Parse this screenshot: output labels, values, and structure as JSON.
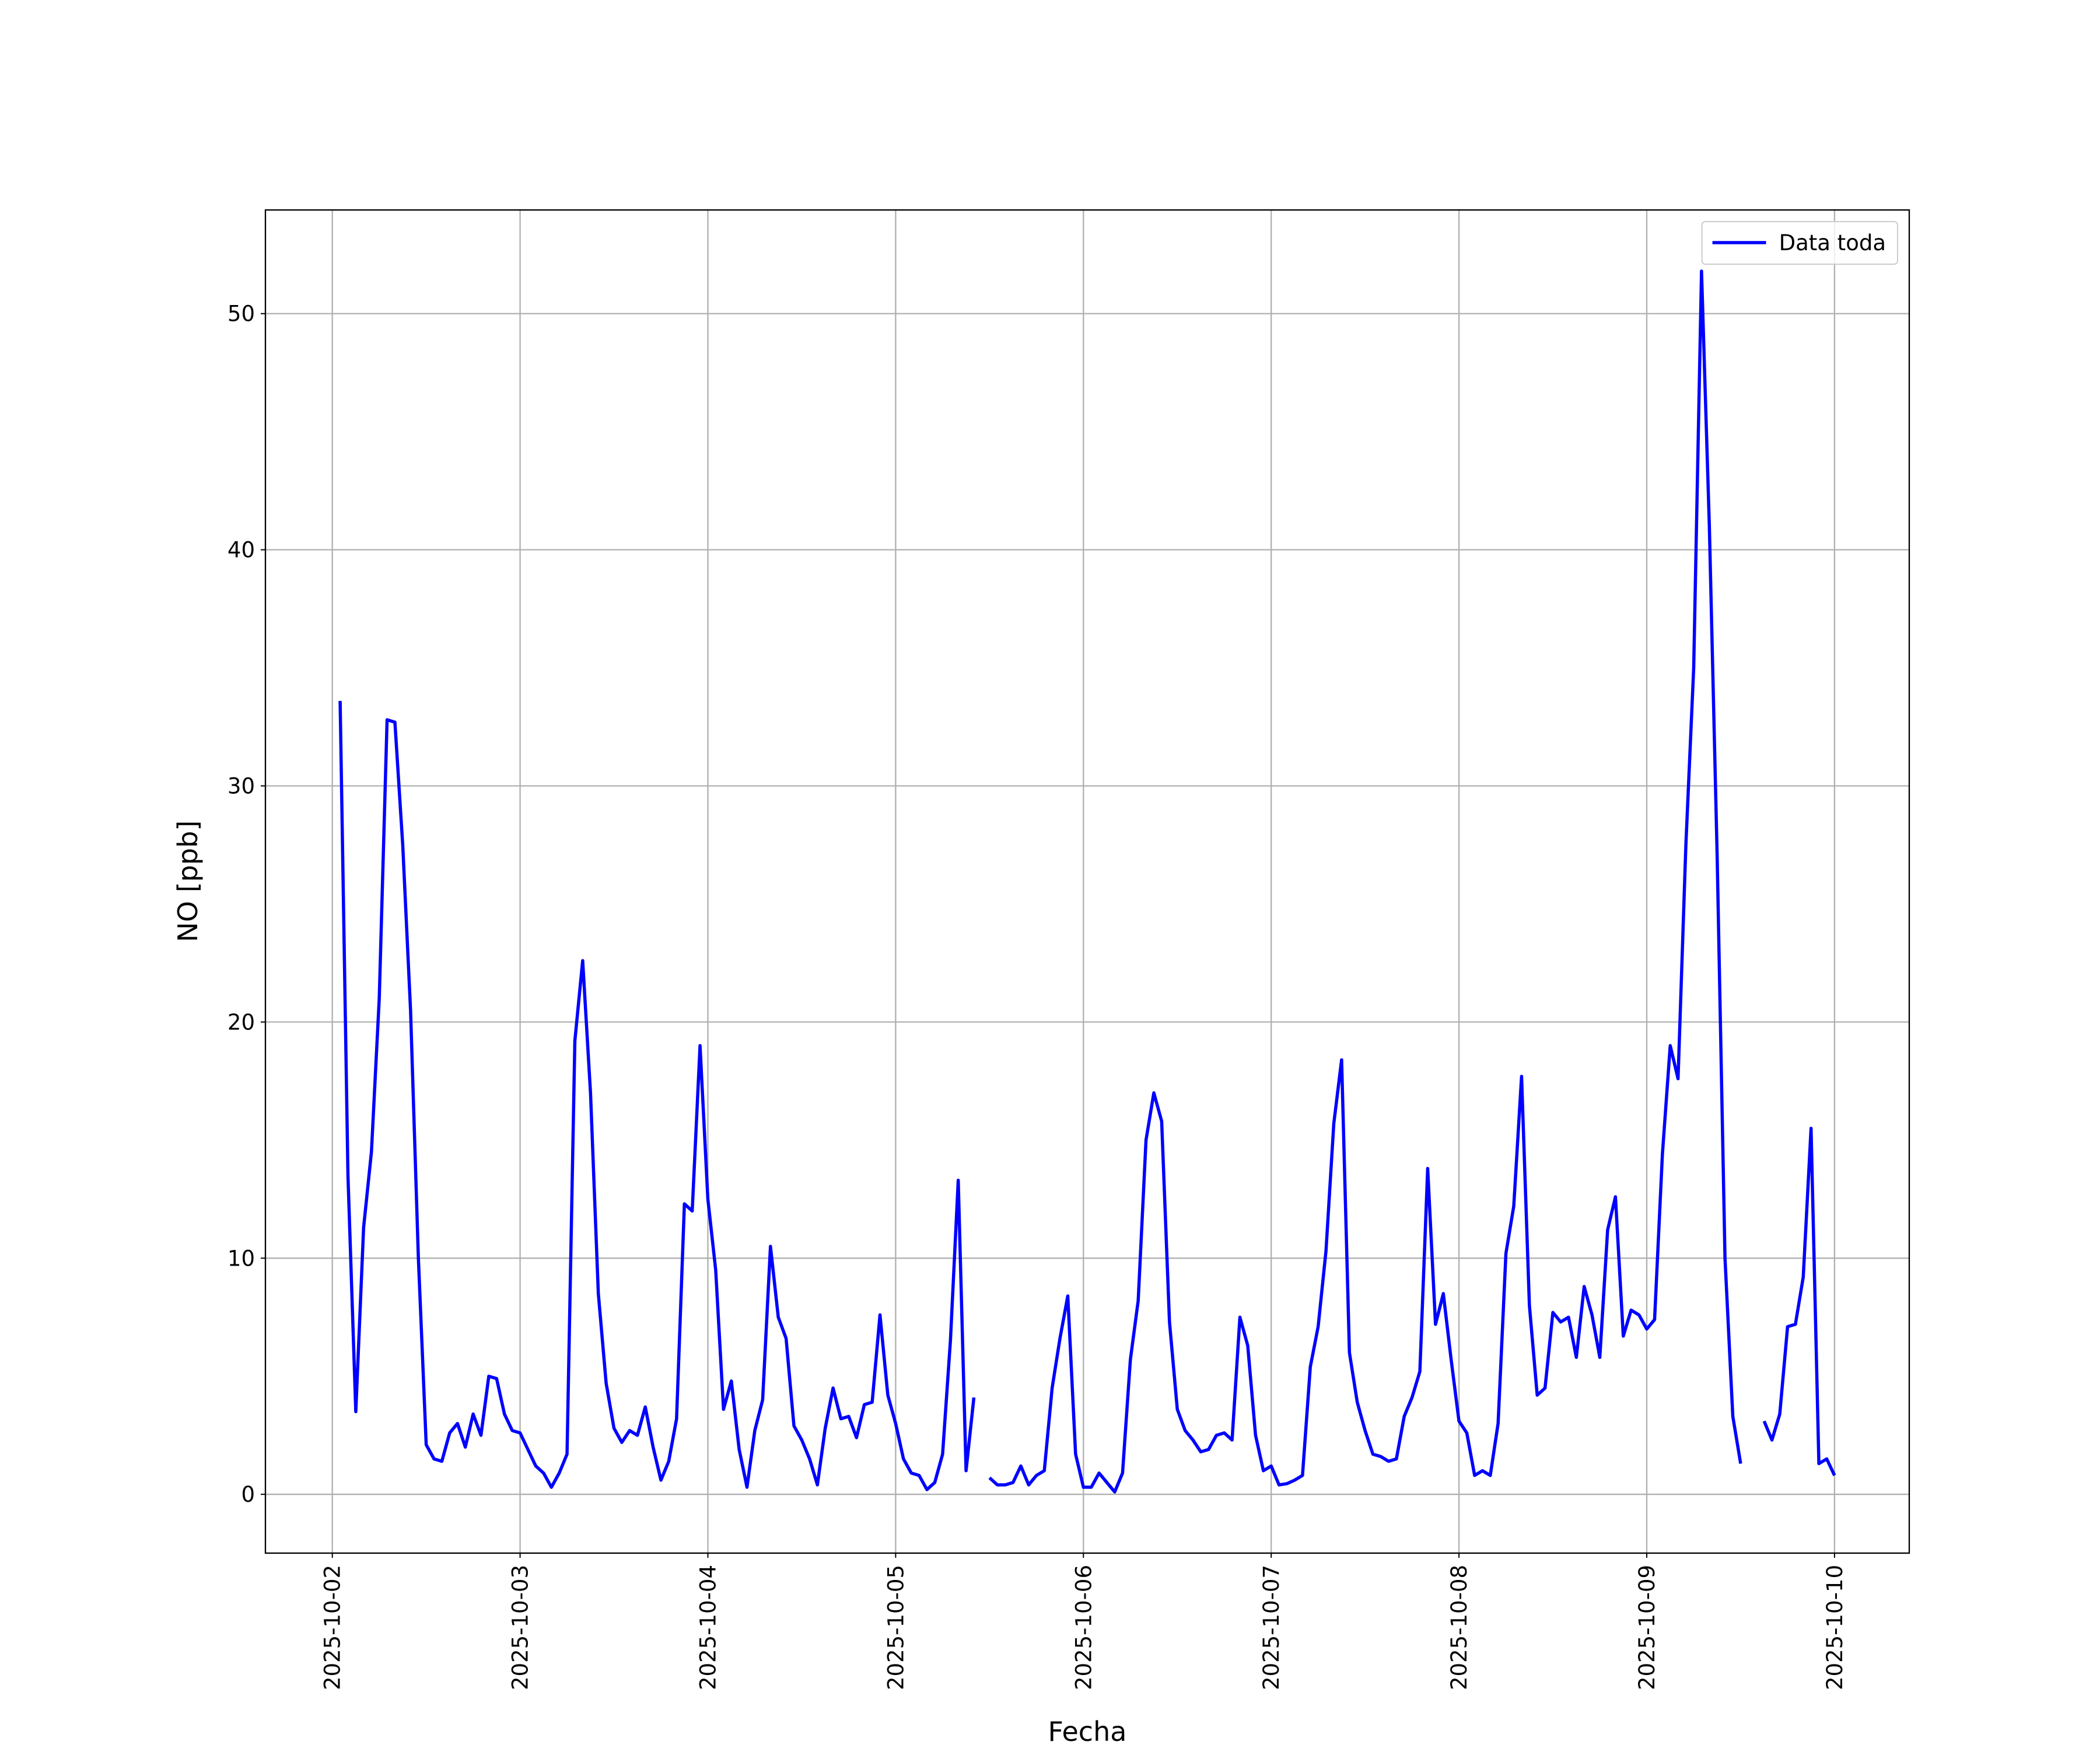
{
  "chart_data": {
    "type": "line",
    "x_label": "Fecha",
    "y_label": "NO [ppb]",
    "xlim": [
      "2025-10-01 15:27",
      "2025-10-10 09:33"
    ],
    "xticks": [
      "2025-10-02",
      "2025-10-03",
      "2025-10-04",
      "2025-10-05",
      "2025-10-06",
      "2025-10-07",
      "2025-10-08",
      "2025-10-09",
      "2025-10-10"
    ],
    "ylim": [
      -2.49,
      54.39
    ],
    "yticks": [
      0,
      10,
      20,
      30,
      40,
      50
    ],
    "grid": true,
    "legend": "upper right",
    "x": [
      "2025-10-02 01:00",
      "2025-10-02 02:00",
      "2025-10-02 03:00",
      "2025-10-02 04:00",
      "2025-10-02 05:00",
      "2025-10-02 06:00",
      "2025-10-02 07:00",
      "2025-10-02 08:00",
      "2025-10-02 09:00",
      "2025-10-02 10:00",
      "2025-10-02 11:00",
      "2025-10-02 12:00",
      "2025-10-02 13:00",
      "2025-10-02 14:00",
      "2025-10-02 15:00",
      "2025-10-02 16:00",
      "2025-10-02 17:00",
      "2025-10-02 18:00",
      "2025-10-02 19:00",
      "2025-10-02 20:00",
      "2025-10-02 21:00",
      "2025-10-02 22:00",
      "2025-10-02 23:00",
      "2025-10-03 00:00",
      "2025-10-03 01:00",
      "2025-10-03 02:00",
      "2025-10-03 03:00",
      "2025-10-03 04:00",
      "2025-10-03 05:00",
      "2025-10-03 06:00",
      "2025-10-03 07:00",
      "2025-10-03 08:00",
      "2025-10-03 09:00",
      "2025-10-03 10:00",
      "2025-10-03 11:00",
      "2025-10-03 12:00",
      "2025-10-03 13:00",
      "2025-10-03 14:00",
      "2025-10-03 15:00",
      "2025-10-03 16:00",
      "2025-10-03 17:00",
      "2025-10-03 18:00",
      "2025-10-03 19:00",
      "2025-10-03 20:00",
      "2025-10-03 21:00",
      "2025-10-03 22:00",
      "2025-10-03 23:00",
      "2025-10-04 00:00",
      "2025-10-04 01:00",
      "2025-10-04 02:00",
      "2025-10-04 03:00",
      "2025-10-04 04:00",
      "2025-10-04 05:00",
      "2025-10-04 06:00",
      "2025-10-04 07:00",
      "2025-10-04 08:00",
      "2025-10-04 09:00",
      "2025-10-04 10:00",
      "2025-10-04 11:00",
      "2025-10-04 12:00",
      "2025-10-04 13:00",
      "2025-10-04 14:00",
      "2025-10-04 15:00",
      "2025-10-04 16:00",
      "2025-10-04 17:00",
      "2025-10-04 18:00",
      "2025-10-04 19:00",
      "2025-10-04 20:00",
      "2025-10-04 21:00",
      "2025-10-04 22:00",
      "2025-10-04 23:00",
      "2025-10-05 00:00",
      "2025-10-05 01:00",
      "2025-10-05 02:00",
      "2025-10-05 03:00",
      "2025-10-05 04:00",
      "2025-10-05 05:00",
      "2025-10-05 06:00",
      "2025-10-05 07:00",
      "2025-10-05 08:00",
      "2025-10-05 09:00",
      "2025-10-05 10:00",
      "2025-10-05 11:00",
      "2025-10-05 12:00",
      "2025-10-05 13:00",
      "2025-10-05 14:00",
      "2025-10-05 15:00",
      "2025-10-05 16:00",
      "2025-10-05 17:00",
      "2025-10-05 18:00",
      "2025-10-05 19:00",
      "2025-10-05 20:00",
      "2025-10-05 21:00",
      "2025-10-05 22:00",
      "2025-10-05 23:00",
      "2025-10-06 00:00",
      "2025-10-06 01:00",
      "2025-10-06 02:00",
      "2025-10-06 03:00",
      "2025-10-06 04:00",
      "2025-10-06 05:00",
      "2025-10-06 06:00",
      "2025-10-06 07:00",
      "2025-10-06 08:00",
      "2025-10-06 09:00",
      "2025-10-06 10:00",
      "2025-10-06 11:00",
      "2025-10-06 12:00",
      "2025-10-06 13:00",
      "2025-10-06 14:00",
      "2025-10-06 15:00",
      "2025-10-06 16:00",
      "2025-10-06 17:00",
      "2025-10-06 18:00",
      "2025-10-06 19:00",
      "2025-10-06 20:00",
      "2025-10-06 21:00",
      "2025-10-06 22:00",
      "2025-10-06 23:00",
      "2025-10-07 00:00",
      "2025-10-07 01:00",
      "2025-10-07 02:00",
      "2025-10-07 03:00",
      "2025-10-07 04:00",
      "2025-10-07 05:00",
      "2025-10-07 06:00",
      "2025-10-07 07:00",
      "2025-10-07 08:00",
      "2025-10-07 09:00",
      "2025-10-07 10:00",
      "2025-10-07 11:00",
      "2025-10-07 12:00",
      "2025-10-07 13:00",
      "2025-10-07 14:00",
      "2025-10-07 15:00",
      "2025-10-07 16:00",
      "2025-10-07 17:00",
      "2025-10-07 18:00",
      "2025-10-07 19:00",
      "2025-10-07 20:00",
      "2025-10-07 21:00",
      "2025-10-07 22:00",
      "2025-10-07 23:00",
      "2025-10-08 00:00",
      "2025-10-08 01:00",
      "2025-10-08 02:00",
      "2025-10-08 03:00",
      "2025-10-08 04:00",
      "2025-10-08 05:00",
      "2025-10-08 06:00",
      "2025-10-08 07:00",
      "2025-10-08 08:00",
      "2025-10-08 09:00",
      "2025-10-08 10:00",
      "2025-10-08 11:00",
      "2025-10-08 12:00",
      "2025-10-08 13:00",
      "2025-10-08 14:00",
      "2025-10-08 15:00",
      "2025-10-08 16:00",
      "2025-10-08 17:00",
      "2025-10-08 18:00",
      "2025-10-08 19:00",
      "2025-10-08 20:00",
      "2025-10-08 21:00",
      "2025-10-08 22:00",
      "2025-10-08 23:00",
      "2025-10-09 00:00",
      "2025-10-09 01:00",
      "2025-10-09 02:00",
      "2025-10-09 03:00",
      "2025-10-09 04:00",
      "2025-10-09 05:00",
      "2025-10-09 06:00",
      "2025-10-09 07:00",
      "2025-10-09 08:00",
      "2025-10-09 09:00",
      "2025-10-09 10:00",
      "2025-10-09 11:00",
      "2025-10-09 12:00",
      "2025-10-09 13:00",
      "2025-10-09 14:00",
      "2025-10-09 15:00",
      "2025-10-09 16:00",
      "2025-10-09 17:00",
      "2025-10-09 18:00",
      "2025-10-09 19:00",
      "2025-10-09 20:00",
      "2025-10-09 21:00",
      "2025-10-09 22:00",
      "2025-10-09 23:00",
      "2025-10-10 00:00"
    ],
    "series": [
      {
        "name": "Data toda",
        "color": "#0000ff",
        "values": [
          33.6,
          13.5,
          3.5,
          11.3,
          14.5,
          21,
          32.8,
          32.7,
          27.5,
          20.5,
          10,
          2.1,
          1.5,
          1.4,
          2.6,
          3.0,
          2.0,
          3.4,
          2.5,
          5.0,
          4.9,
          3.4,
          2.7,
          2.6,
          1.9,
          1.2,
          0.9,
          0.3,
          0.9,
          1.7,
          19.2,
          22.6,
          17,
          8.5,
          4.7,
          2.8,
          2.2,
          2.7,
          2.5,
          3.7,
          2.0,
          0.6,
          1.4,
          3.2,
          12.3,
          12.0,
          19.0,
          12.5,
          9.5,
          3.6,
          4.8,
          1.9,
          0.3,
          2.7,
          4.0,
          10.5,
          7.5,
          6.6,
          2.9,
          2.3,
          1.5,
          0.4,
          2.8,
          4.5,
          3.2,
          3.3,
          2.4,
          3.8,
          3.9,
          7.6,
          4.2,
          3.0,
          1.5,
          0.9,
          0.8,
          0.2,
          0.5,
          1.7,
          6.5,
          13.3,
          1.0,
          4.1,
          null,
          0.7,
          0.4,
          0.4,
          0.5,
          1.2,
          0.4,
          0.8,
          1.0,
          4.5,
          6.6,
          8.4,
          1.7,
          0.3,
          0.3,
          0.9,
          0.5,
          0.1,
          0.9,
          5.7,
          8.2,
          15,
          17,
          15.8,
          7.3,
          3.6,
          2.7,
          2.3,
          1.8,
          1.9,
          2.5,
          2.6,
          2.3,
          7.5,
          6.3,
          2.5,
          1.0,
          1.2,
          0.4,
          0.45,
          0.6,
          0.8,
          5.4,
          7.1,
          10.3,
          15.7,
          18.4,
          6.0,
          3.9,
          2.7,
          1.7,
          1.6,
          1.4,
          1.5,
          3.3,
          4.1,
          5.2,
          13.8,
          7.2,
          8.5,
          5.7,
          3.1,
          2.6,
          0.8,
          1.0,
          0.8,
          3.0,
          10.2,
          12.2,
          17.7,
          8.0,
          4.2,
          4.5,
          7.7,
          7.3,
          7.5,
          5.8,
          8.8,
          7.6,
          5.8,
          11.2,
          12.6,
          6.7,
          7.8,
          7.6,
          7.0,
          7.4,
          14.4,
          19.0,
          17.6,
          27.5,
          35,
          51.8,
          41,
          27,
          10,
          3.3,
          1.3,
          null,
          null,
          3.1,
          2.3,
          3.4,
          7.1,
          7.2,
          9.2,
          15.5,
          1.3,
          1.5,
          0.8
        ]
      }
    ]
  }
}
